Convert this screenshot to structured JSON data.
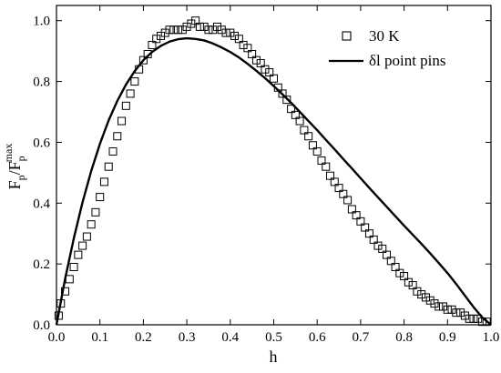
{
  "chart_data": {
    "type": "scatter",
    "xlabel": "h",
    "ylabel": {
      "main": "F",
      "sub1": "p",
      "sep": "/F",
      "sub2": "p",
      "sup": "max"
    },
    "xlim": [
      0.0,
      1.0
    ],
    "ylim": [
      0.0,
      1.05
    ],
    "xticks": [
      "0.0",
      "0.1",
      "0.2",
      "0.3",
      "0.4",
      "0.5",
      "0.6",
      "0.7",
      "0.8",
      "0.9",
      "1.0"
    ],
    "yticks": [
      "0.0",
      "0.2",
      "0.4",
      "0.6",
      "0.8",
      "1.0"
    ],
    "grid": false,
    "legend_position": "top-right",
    "series": [
      {
        "name": "30 K",
        "style": "open-square-markers",
        "x": [
          0.005,
          0.01,
          0.02,
          0.03,
          0.04,
          0.05,
          0.06,
          0.07,
          0.08,
          0.09,
          0.1,
          0.11,
          0.12,
          0.13,
          0.14,
          0.15,
          0.16,
          0.17,
          0.18,
          0.19,
          0.2,
          0.21,
          0.22,
          0.23,
          0.24,
          0.25,
          0.26,
          0.27,
          0.28,
          0.29,
          0.3,
          0.31,
          0.32,
          0.33,
          0.34,
          0.35,
          0.36,
          0.37,
          0.38,
          0.39,
          0.4,
          0.41,
          0.42,
          0.43,
          0.44,
          0.45,
          0.46,
          0.47,
          0.48,
          0.49,
          0.5,
          0.51,
          0.52,
          0.53,
          0.54,
          0.55,
          0.56,
          0.57,
          0.58,
          0.59,
          0.6,
          0.61,
          0.62,
          0.63,
          0.64,
          0.65,
          0.66,
          0.67,
          0.68,
          0.69,
          0.7,
          0.71,
          0.72,
          0.73,
          0.74,
          0.75,
          0.76,
          0.77,
          0.78,
          0.79,
          0.8,
          0.81,
          0.82,
          0.83,
          0.84,
          0.85,
          0.86,
          0.87,
          0.88,
          0.89,
          0.9,
          0.91,
          0.92,
          0.93,
          0.94,
          0.95,
          0.96,
          0.97,
          0.98,
          0.99
        ],
        "y": [
          0.03,
          0.07,
          0.11,
          0.15,
          0.19,
          0.23,
          0.26,
          0.29,
          0.33,
          0.37,
          0.42,
          0.47,
          0.52,
          0.57,
          0.62,
          0.67,
          0.72,
          0.76,
          0.8,
          0.84,
          0.87,
          0.89,
          0.92,
          0.94,
          0.95,
          0.96,
          0.97,
          0.97,
          0.97,
          0.97,
          0.98,
          0.99,
          1.0,
          0.98,
          0.98,
          0.97,
          0.97,
          0.98,
          0.97,
          0.96,
          0.96,
          0.95,
          0.94,
          0.92,
          0.91,
          0.89,
          0.87,
          0.86,
          0.84,
          0.83,
          0.81,
          0.78,
          0.76,
          0.74,
          0.71,
          0.69,
          0.67,
          0.64,
          0.62,
          0.59,
          0.57,
          0.54,
          0.52,
          0.49,
          0.47,
          0.45,
          0.43,
          0.41,
          0.38,
          0.36,
          0.34,
          0.32,
          0.3,
          0.28,
          0.26,
          0.25,
          0.23,
          0.21,
          0.19,
          0.17,
          0.16,
          0.14,
          0.13,
          0.11,
          0.1,
          0.09,
          0.08,
          0.07,
          0.06,
          0.06,
          0.05,
          0.05,
          0.04,
          0.04,
          0.03,
          0.02,
          0.02,
          0.02,
          0.01,
          0.01
        ]
      },
      {
        "name": "δl point pins",
        "style": "solid-line",
        "x": [
          0.0,
          0.02,
          0.04,
          0.06,
          0.08,
          0.1,
          0.12,
          0.14,
          0.16,
          0.18,
          0.2,
          0.22,
          0.24,
          0.26,
          0.28,
          0.3,
          0.32,
          0.34,
          0.36,
          0.38,
          0.4,
          0.42,
          0.44,
          0.46,
          0.48,
          0.5,
          0.52,
          0.54,
          0.56,
          0.58,
          0.6,
          0.62,
          0.64,
          0.66,
          0.68,
          0.7,
          0.72,
          0.74,
          0.76,
          0.78,
          0.8,
          0.82,
          0.84,
          0.86,
          0.88,
          0.9,
          0.92,
          0.94,
          0.96,
          0.98,
          1.0
        ],
        "y": [
          0.0,
          0.152,
          0.285,
          0.403,
          0.506,
          0.595,
          0.672,
          0.736,
          0.79,
          0.834,
          0.87,
          0.897,
          0.917,
          0.931,
          0.939,
          0.942,
          0.94,
          0.935,
          0.925,
          0.912,
          0.897,
          0.879,
          0.858,
          0.835,
          0.811,
          0.785,
          0.758,
          0.73,
          0.7,
          0.67,
          0.64,
          0.608,
          0.577,
          0.545,
          0.514,
          0.482,
          0.45,
          0.419,
          0.388,
          0.357,
          0.326,
          0.296,
          0.266,
          0.235,
          0.203,
          0.17,
          0.134,
          0.096,
          0.058,
          0.024,
          0.0
        ]
      }
    ]
  }
}
